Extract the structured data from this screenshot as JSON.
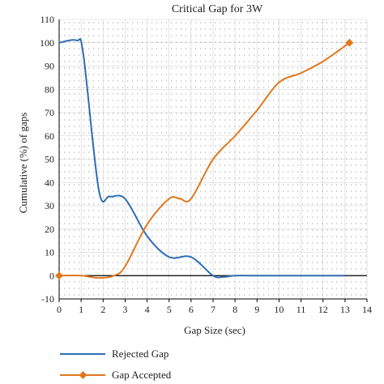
{
  "chart_data": {
    "type": "line",
    "title": "Critical Gap for 3W",
    "xlabel": "Gap Size (sec)",
    "ylabel": "Cumulative (%) of gaps",
    "xlim": [
      0,
      14
    ],
    "ylim": [
      -10,
      110
    ],
    "xticks": [
      0,
      1,
      2,
      3,
      4,
      5,
      6,
      7,
      8,
      9,
      10,
      11,
      12,
      13,
      14
    ],
    "yticks": [
      -10,
      0,
      10,
      20,
      30,
      40,
      50,
      60,
      70,
      80,
      90,
      100,
      110
    ],
    "grid": "dotted",
    "legend_position": "bottom-left",
    "series": [
      {
        "name": "Rejected Gap",
        "color": "#2E6DB4",
        "x": [
          0,
          0.8,
          1.1,
          1.8,
          2.3,
          3.0,
          4.0,
          5.0,
          6.0,
          7.0,
          7.5,
          8.0,
          9.0,
          10.0,
          11.0,
          12.0,
          13.0
        ],
        "y": [
          100,
          101,
          95,
          37,
          34,
          33,
          17,
          8,
          8,
          0,
          -0.5,
          0,
          0,
          0,
          0,
          0,
          0
        ]
      },
      {
        "name": "Gap Accepted",
        "color": "#E0781E",
        "x": [
          0,
          1.0,
          1.8,
          2.5,
          3.0,
          4.0,
          5.0,
          5.5,
          6.0,
          7.0,
          8.0,
          9.0,
          10.0,
          11.0,
          12.0,
          13.2
        ],
        "y": [
          0,
          0,
          -1,
          0,
          4,
          22,
          33,
          33,
          33,
          50,
          60,
          71,
          83,
          87,
          92,
          100
        ]
      }
    ]
  }
}
